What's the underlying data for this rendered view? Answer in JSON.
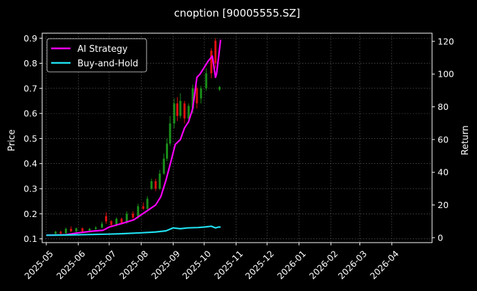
{
  "chart_data": {
    "type": "line",
    "title": "cnoption [90005555.SZ]",
    "ylabel": "Price",
    "y2label": "Return",
    "x_axis": {
      "type": "date",
      "ticks": [
        "2025-05",
        "2025-06",
        "2025-07",
        "2025-08",
        "2025-09",
        "2025-10",
        "2025-11",
        "2025-12",
        "2026-01",
        "2026-02",
        "2026-03",
        "2026-04"
      ],
      "range": [
        "2025-04-27",
        "2026-05-10"
      ]
    },
    "ylim": [
      0.085,
      0.92
    ],
    "y_ticks": [
      "0.1",
      "0.2",
      "0.3",
      "0.4",
      "0.5",
      "0.6",
      "0.7",
      "0.8",
      "0.9"
    ],
    "y2lim": [
      -3,
      125
    ],
    "y2_ticks": [
      "0",
      "20",
      "40",
      "60",
      "80",
      "100",
      "120"
    ],
    "grid": true,
    "legend": "top-left",
    "colors": {
      "background": "#000000",
      "up_candle": "#1a8f1a",
      "down_candle": "#e01010",
      "ai_strategy": "#ff00ff",
      "buy_and_hold": "#20e0f0",
      "grid": "#555555"
    },
    "series": [
      {
        "name": "AI Strategy",
        "axis": "right",
        "x": [
          "2025-05-01",
          "2025-05-20",
          "2025-06-01",
          "2025-06-15",
          "2025-06-25",
          "2025-07-01",
          "2025-07-15",
          "2025-07-25",
          "2025-08-01",
          "2025-08-08",
          "2025-08-15",
          "2025-08-20",
          "2025-08-25",
          "2025-08-30",
          "2025-09-03",
          "2025-09-08",
          "2025-09-12",
          "2025-09-16",
          "2025-09-20",
          "2025-09-24",
          "2025-09-27",
          "2025-10-01",
          "2025-10-05",
          "2025-10-09",
          "2025-10-12",
          "2025-10-13",
          "2025-10-15",
          "2025-10-17"
        ],
        "y": [
          1.5,
          1.8,
          3.0,
          4.0,
          4.5,
          6.5,
          9.0,
          11.0,
          14.0,
          17.0,
          20.0,
          25.0,
          35.0,
          47.0,
          57.0,
          60.0,
          67.0,
          71.0,
          79.0,
          98.0,
          100.0,
          104.0,
          108.0,
          111.0,
          98.0,
          100.0,
          110.0,
          121.0
        ]
      },
      {
        "name": "Buy-and-Hold",
        "axis": "right",
        "x": [
          "2025-05-01",
          "2025-05-15",
          "2025-06-01",
          "2025-06-15",
          "2025-07-01",
          "2025-07-15",
          "2025-08-01",
          "2025-08-15",
          "2025-08-25",
          "2025-09-01",
          "2025-09-08",
          "2025-09-15",
          "2025-09-25",
          "2025-10-01",
          "2025-10-08",
          "2025-10-12",
          "2025-10-15",
          "2025-10-17"
        ],
        "y": [
          1.5,
          1.6,
          1.8,
          2.0,
          2.2,
          2.5,
          3.0,
          3.5,
          4.2,
          6.0,
          5.5,
          6.0,
          6.2,
          6.5,
          7.0,
          6.0,
          6.5,
          6.5
        ]
      }
    ],
    "candles": [
      {
        "d": "2025-05-10",
        "o": 0.12,
        "c": 0.128,
        "h": 0.132,
        "l": 0.118
      },
      {
        "d": "2025-05-15",
        "o": 0.128,
        "c": 0.122,
        "h": 0.132,
        "l": 0.118
      },
      {
        "d": "2025-05-20",
        "o": 0.122,
        "c": 0.14,
        "h": 0.145,
        "l": 0.12
      },
      {
        "d": "2025-05-25",
        "o": 0.14,
        "c": 0.13,
        "h": 0.15,
        "l": 0.128
      },
      {
        "d": "2025-05-30",
        "o": 0.13,
        "c": 0.142,
        "h": 0.145,
        "l": 0.126
      },
      {
        "d": "2025-06-05",
        "o": 0.142,
        "c": 0.13,
        "h": 0.145,
        "l": 0.125
      },
      {
        "d": "2025-06-12",
        "o": 0.13,
        "c": 0.14,
        "h": 0.144,
        "l": 0.128
      },
      {
        "d": "2025-06-18",
        "o": 0.14,
        "c": 0.145,
        "h": 0.15,
        "l": 0.135
      },
      {
        "d": "2025-06-24",
        "o": 0.145,
        "c": 0.16,
        "h": 0.168,
        "l": 0.143
      },
      {
        "d": "2025-06-28",
        "o": 0.19,
        "c": 0.17,
        "h": 0.205,
        "l": 0.16
      },
      {
        "d": "2025-07-03",
        "o": 0.17,
        "c": 0.155,
        "h": 0.175,
        "l": 0.15
      },
      {
        "d": "2025-07-08",
        "o": 0.155,
        "c": 0.18,
        "h": 0.185,
        "l": 0.15
      },
      {
        "d": "2025-07-13",
        "o": 0.18,
        "c": 0.165,
        "h": 0.185,
        "l": 0.16
      },
      {
        "d": "2025-07-18",
        "o": 0.165,
        "c": 0.2,
        "h": 0.21,
        "l": 0.16
      },
      {
        "d": "2025-07-24",
        "o": 0.2,
        "c": 0.185,
        "h": 0.21,
        "l": 0.18
      },
      {
        "d": "2025-07-29",
        "o": 0.185,
        "c": 0.23,
        "h": 0.24,
        "l": 0.18
      },
      {
        "d": "2025-08-03",
        "o": 0.23,
        "c": 0.22,
        "h": 0.245,
        "l": 0.215
      },
      {
        "d": "2025-08-07",
        "o": 0.22,
        "c": 0.26,
        "h": 0.27,
        "l": 0.215
      },
      {
        "d": "2025-08-11",
        "o": 0.3,
        "c": 0.33,
        "h": 0.34,
        "l": 0.295
      },
      {
        "d": "2025-08-15",
        "o": 0.33,
        "c": 0.3,
        "h": 0.34,
        "l": 0.29
      },
      {
        "d": "2025-08-19",
        "o": 0.3,
        "c": 0.36,
        "h": 0.375,
        "l": 0.295
      },
      {
        "d": "2025-08-23",
        "o": 0.36,
        "c": 0.42,
        "h": 0.44,
        "l": 0.355
      },
      {
        "d": "2025-08-26",
        "o": 0.42,
        "c": 0.48,
        "h": 0.5,
        "l": 0.41
      },
      {
        "d": "2025-08-29",
        "o": 0.48,
        "c": 0.56,
        "h": 0.59,
        "l": 0.47
      },
      {
        "d": "2025-09-02",
        "o": 0.56,
        "c": 0.64,
        "h": 0.66,
        "l": 0.54
      },
      {
        "d": "2025-09-05",
        "o": 0.64,
        "c": 0.59,
        "h": 0.665,
        "l": 0.57
      },
      {
        "d": "2025-09-08",
        "o": 0.59,
        "c": 0.65,
        "h": 0.68,
        "l": 0.58
      },
      {
        "d": "2025-09-12",
        "o": 0.64,
        "c": 0.58,
        "h": 0.65,
        "l": 0.56
      },
      {
        "d": "2025-09-16",
        "o": 0.58,
        "c": 0.63,
        "h": 0.64,
        "l": 0.56
      },
      {
        "d": "2025-09-20",
        "o": 0.62,
        "c": 0.7,
        "h": 0.715,
        "l": 0.6
      },
      {
        "d": "2025-09-24",
        "o": 0.7,
        "c": 0.64,
        "h": 0.71,
        "l": 0.62
      },
      {
        "d": "2025-09-28",
        "o": 0.66,
        "c": 0.7,
        "h": 0.71,
        "l": 0.64
      },
      {
        "d": "2025-10-03",
        "o": 0.7,
        "c": 0.76,
        "h": 0.78,
        "l": 0.69
      },
      {
        "d": "2025-10-08",
        "o": 0.85,
        "c": 0.76,
        "h": 0.86,
        "l": 0.74
      },
      {
        "d": "2025-10-12",
        "o": 0.89,
        "c": 0.8,
        "h": 0.9,
        "l": 0.78
      },
      {
        "d": "2025-10-16",
        "o": 0.695,
        "c": 0.705,
        "h": 0.71,
        "l": 0.69
      }
    ]
  },
  "legend": {
    "items": [
      {
        "label": "AI Strategy",
        "color": "#ff00ff"
      },
      {
        "label": "Buy-and-Hold",
        "color": "#20e0f0"
      }
    ]
  }
}
